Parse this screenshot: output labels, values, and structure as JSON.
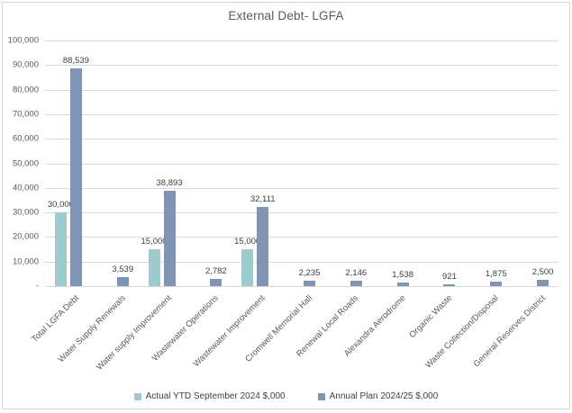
{
  "window": {
    "background": "#ffffff",
    "border_color": "#d8d8d8"
  },
  "chart_data": {
    "type": "bar",
    "title": "External Debt- LGFA",
    "categories": [
      "Total LGFA Debt",
      "Water Supply Renewals",
      "Water supply Improvement",
      "Wastewater Operations",
      "Wastewater Improvement",
      "Cromwell Memorial Hall",
      "Renewal Local Roads",
      "Alexandra Aerodrome",
      "Organic Waste",
      "Waste Collection/Disposal",
      "General Reserves District"
    ],
    "series": [
      {
        "name": "Actual YTD September 2024 $,000",
        "color": "#9CCCCE",
        "values": [
          30000,
          0,
          15000,
          0,
          15000,
          0,
          0,
          0,
          0,
          0,
          0
        ]
      },
      {
        "name": "Annual Plan 2024/25 $,000",
        "color": "#8094B3",
        "values": [
          88539,
          3539,
          38893,
          2782,
          32111,
          2235,
          2146,
          1538,
          921,
          1875,
          2500
        ]
      }
    ],
    "ylim": [
      0,
      100000
    ],
    "y_tick_interval": 10000,
    "y_tick_labels": [
      "-",
      "10,000",
      "20,000",
      "30,000",
      "40,000",
      "50,000",
      "60,000",
      "70,000",
      "80,000",
      "90,000",
      "100,000"
    ],
    "grid": true,
    "data_labels": true,
    "legend_position": "bottom"
  },
  "colors": {
    "gridline": "#d9d9d9",
    "axis_text": "#595959",
    "data_label_text": "#404040",
    "title_text": "#595959"
  }
}
